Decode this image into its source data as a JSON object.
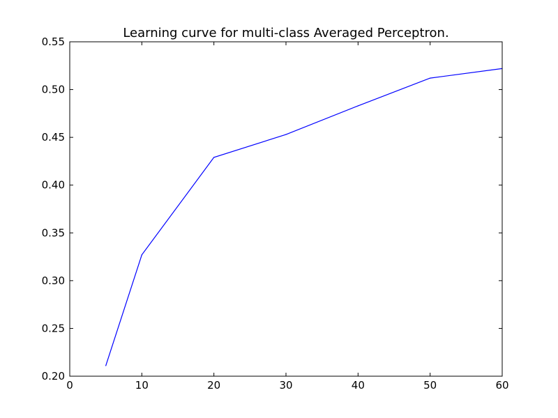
{
  "chart_data": {
    "type": "line",
    "title": "Learning curve for multi-class Averaged Perceptron.",
    "xlabel": "",
    "ylabel": "",
    "xlim": [
      0,
      60
    ],
    "ylim": [
      0.2,
      0.55
    ],
    "x_ticks": [
      0,
      10,
      20,
      30,
      40,
      50,
      60
    ],
    "y_ticks": [
      0.2,
      0.25,
      0.3,
      0.35,
      0.4,
      0.45,
      0.5,
      0.55
    ],
    "x_tick_labels": [
      "0",
      "10",
      "20",
      "30",
      "40",
      "50",
      "60"
    ],
    "y_tick_labels": [
      "0.20",
      "0.25",
      "0.30",
      "0.35",
      "0.40",
      "0.45",
      "0.50",
      "0.55"
    ],
    "grid": false,
    "legend": "none",
    "series": [
      {
        "color": "#0000ff",
        "x": [
          5,
          10,
          20,
          30,
          40,
          50,
          60
        ],
        "y": [
          0.211,
          0.327,
          0.429,
          0.453,
          0.483,
          0.512,
          0.522
        ]
      }
    ]
  }
}
